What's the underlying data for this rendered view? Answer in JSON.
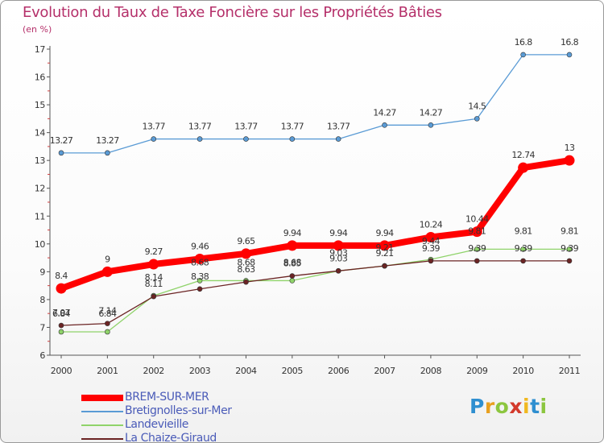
{
  "title": "Evolution du Taux de Taxe Foncière sur les Propriétés Bâties",
  "unit_label": "(en %)",
  "logo_text": "Proxiti",
  "chart_data": {
    "type": "line",
    "title": "Evolution du Taux de Taxe Foncière sur les Propriétés Bâties",
    "ylabel": "(en %)",
    "xlabel": "",
    "x": [
      "2000",
      "2001",
      "2002",
      "2003",
      "2004",
      "2005",
      "2006",
      "2007",
      "2008",
      "2009",
      "2010",
      "2011"
    ],
    "ylim": [
      6,
      17
    ],
    "yticks": [
      6,
      7,
      8,
      9,
      10,
      11,
      12,
      13,
      14,
      15,
      16,
      17
    ],
    "grid": false,
    "legend_position": "bottom-left",
    "series": [
      {
        "name": "BREM-SUR-MER",
        "color": "#ff0000",
        "values": [
          8.4,
          9,
          9.27,
          9.46,
          9.65,
          9.94,
          9.94,
          9.94,
          10.24,
          10.44,
          12.74,
          13
        ],
        "labels": [
          "8.4",
          "9",
          "9.27",
          "9.46",
          "9.65",
          "9.94",
          "9.94",
          "9.94",
          "10.24",
          "10.44",
          "12.74",
          "13"
        ]
      },
      {
        "name": "Bretignolles-sur-Mer",
        "color": "#5a9bd5",
        "values": [
          13.27,
          13.27,
          13.77,
          13.77,
          13.77,
          13.77,
          13.77,
          14.27,
          14.27,
          14.5,
          16.8,
          16.8
        ],
        "labels": [
          "13.27",
          "13.27",
          "13.77",
          "13.77",
          "13.77",
          "13.77",
          "13.77",
          "14.27",
          "14.27",
          "14.5",
          "16.8",
          "16.8"
        ]
      },
      {
        "name": "Landevieille",
        "color": "#8fd36a",
        "values": [
          6.84,
          6.84,
          8.14,
          8.68,
          8.68,
          8.68,
          9.03,
          9.21,
          9.44,
          9.81,
          9.81,
          9.81
        ],
        "labels": [
          "6.84",
          "6.84",
          "8.14",
          "8.68",
          "8.68",
          "8.68",
          "9.03",
          "9.21",
          "9.44",
          "9.81",
          "9.81",
          "9.81"
        ]
      },
      {
        "name": "La Chaize-Giraud",
        "color": "#6b2424",
        "values": [
          7.07,
          7.14,
          8.11,
          8.38,
          8.63,
          8.85,
          9.03,
          9.21,
          9.39,
          9.39,
          9.39,
          9.39
        ],
        "labels": [
          "7.07",
          "7.14",
          "8.11",
          "8.38",
          "8.63",
          "8.85",
          "9.03",
          "9.21",
          "9.39",
          "9.39",
          "9.39",
          "9.39"
        ]
      }
    ]
  }
}
